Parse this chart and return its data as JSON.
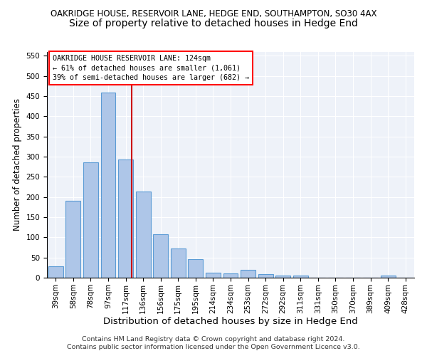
{
  "title": "OAKRIDGE HOUSE, RESERVOIR LANE, HEDGE END, SOUTHAMPTON, SO30 4AX",
  "subtitle": "Size of property relative to detached houses in Hedge End",
  "xlabel": "Distribution of detached houses by size in Hedge End",
  "ylabel": "Number of detached properties",
  "footer_line1": "Contains HM Land Registry data © Crown copyright and database right 2024.",
  "footer_line2": "Contains public sector information licensed under the Open Government Licence v3.0.",
  "bin_labels": [
    "39sqm",
    "58sqm",
    "78sqm",
    "97sqm",
    "117sqm",
    "136sqm",
    "156sqm",
    "175sqm",
    "195sqm",
    "214sqm",
    "234sqm",
    "253sqm",
    "272sqm",
    "292sqm",
    "311sqm",
    "331sqm",
    "350sqm",
    "370sqm",
    "389sqm",
    "409sqm",
    "428sqm"
  ],
  "bar_values": [
    28,
    190,
    286,
    458,
    293,
    213,
    108,
    73,
    46,
    12,
    11,
    20,
    8,
    5,
    5,
    0,
    0,
    0,
    0,
    5,
    0
  ],
  "bar_color": "#aec6e8",
  "bar_edgecolor": "#5b9bd5",
  "bar_linewidth": 0.8,
  "red_line_x": 4.35,
  "red_line_color": "#cc0000",
  "annotation_box_text": "OAKRIDGE HOUSE RESERVOIR LANE: 124sqm\n← 61% of detached houses are smaller (1,061)\n39% of semi-detached houses are larger (682) →",
  "annotation_fontsize": 7.2,
  "ylim": [
    0,
    560
  ],
  "yticks": [
    0,
    50,
    100,
    150,
    200,
    250,
    300,
    350,
    400,
    450,
    500,
    550
  ],
  "background_color": "#eef2f9",
  "title_fontsize": 8.5,
  "subtitle_fontsize": 10,
  "xlabel_fontsize": 9.5,
  "ylabel_fontsize": 8.5,
  "tick_fontsize": 7.5,
  "footer_fontsize": 6.8
}
